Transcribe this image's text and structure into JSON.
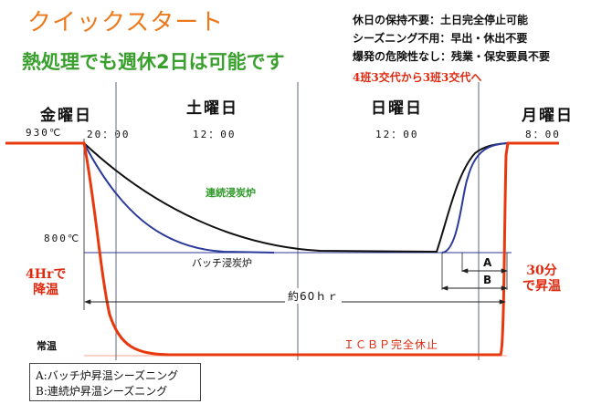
{
  "title": "クイックスタート",
  "subtitle": "熱処理でも週休2日は可能です",
  "notes": [
    "休日の保持不要：土日完全停止可能",
    "シーズニング不用：早出・休出不要",
    "爆発の危険性なし：残業・保安要員不要",
    "4班3交代から3班3交代へ"
  ],
  "days": [
    "金曜日",
    "土曜日",
    "日曜日",
    "月曜日"
  ],
  "times": [
    "930℃",
    "20：00",
    "12：00",
    "12：00",
    "8：00"
  ],
  "labels": {
    "continuous_furnace": "連続浸炭炉",
    "batch_furnace": "バッチ浸炭炉",
    "temp_800": "800℃",
    "room_temp": "常温",
    "duration": "約60ｈｒ",
    "icbp": "ＩＣＢＰ完全休止",
    "cool_down": [
      "4Hrで",
      "降温"
    ],
    "heat_up": [
      "30分",
      "で昇温"
    ],
    "a": "A",
    "b": "B"
  },
  "legend": [
    "A:バッチ炉昇温シーズニング",
    "B:連続炉昇温シーズニング"
  ],
  "colors": {
    "title": "#ec7a1c",
    "subtitle": "#3aa02d",
    "icbp_line": "#e8380d",
    "continuous_line": "#111111",
    "batch_line": "#2b3a9a",
    "grid": "#7a8290",
    "emphasis": "#e02a10"
  }
}
